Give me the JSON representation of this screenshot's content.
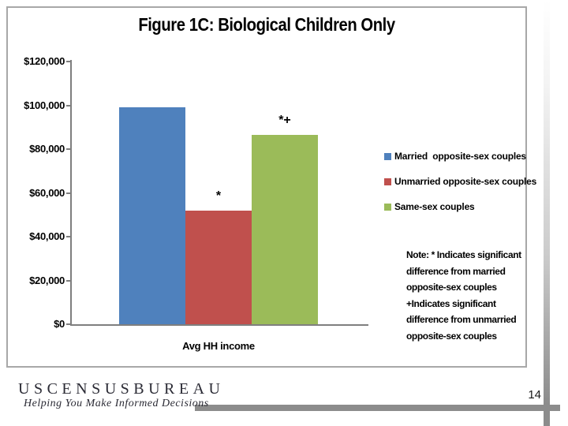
{
  "slide": {
    "page_number": "14",
    "footer": {
      "logo_text": "USCENSUSBUREAU",
      "tagline": "Helping You Make Informed Decisions"
    },
    "accent_color": "#8C8C8C"
  },
  "chart_data": {
    "type": "bar",
    "title": "Figure 1C: Biological Children Only",
    "categories": [
      "Avg HH income"
    ],
    "xlabel": "Avg HH income",
    "ylabel": "",
    "ylim": [
      0,
      120000
    ],
    "ytick_interval": 20000,
    "grid": false,
    "legend_position": "right",
    "series": [
      {
        "name": "Married  opposite-sex couples",
        "value": 99000,
        "color": "#4F81BD",
        "annotation": ""
      },
      {
        "name": "Unmarried opposite-sex couples",
        "value": 52000,
        "color": "#C0504D",
        "annotation": "*"
      },
      {
        "name": "Same-sex couples",
        "value": 86500,
        "color": "#9BBB59",
        "annotation": "*+"
      }
    ],
    "yticks": [
      {
        "label": "$0",
        "value": 0
      },
      {
        "label": "$20,000",
        "value": 20000
      },
      {
        "label": "$40,000",
        "value": 40000
      },
      {
        "label": "$60,000",
        "value": 60000
      },
      {
        "label": "$80,000",
        "value": 80000
      },
      {
        "label": "$100,000",
        "value": 100000
      },
      {
        "label": "$120,000",
        "value": 120000
      }
    ],
    "note_lines": [
      "Note: * Indicates significant",
      "difference from married",
      "opposite-sex couples",
      "+Indicates significant",
      "difference from unmarried",
      "opposite-sex couples"
    ]
  }
}
